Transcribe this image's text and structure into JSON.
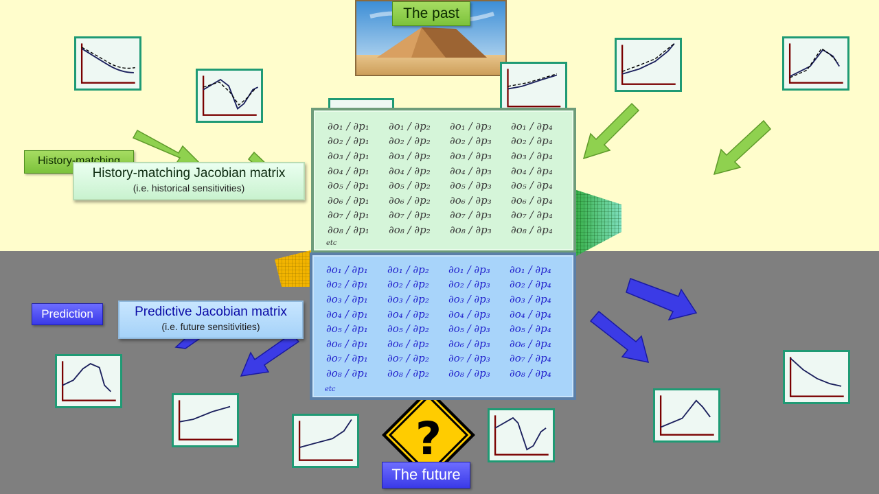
{
  "past": {
    "label": "The past"
  },
  "future": {
    "label": "The future"
  },
  "tags": {
    "history": "History-matching",
    "prediction": "Prediction"
  },
  "history_box": {
    "title": "History-matching  Jacobian matrix",
    "subtitle": "(i.e. historical sensitivities)"
  },
  "predict_box": {
    "title": "Predictive Jacobian matrix",
    "subtitle": "(i.e. future sensitivities)"
  },
  "sign": {
    "symbol": "?"
  },
  "history_matrix": {
    "rows": [
      [
        "∂o₁ / ∂p₁",
        "∂o₁ / ∂p₂",
        "∂o₁ / ∂p₃",
        "∂o₁ / ∂p₄"
      ],
      [
        "∂o₂ / ∂p₁",
        "∂o₂ / ∂p₂",
        "∂o₂ / ∂p₃",
        "∂o₂ / ∂p₄"
      ],
      [
        "∂o₃ / ∂p₁",
        "∂o₃ / ∂p₂",
        "∂o₃ / ∂p₃",
        "∂o₃ / ∂p₄"
      ],
      [
        "∂o₄ / ∂p₁",
        "∂o₄ / ∂p₂",
        "∂o₄ / ∂p₃",
        "∂o₄ / ∂p₄"
      ],
      [
        "∂o₅ / ∂p₁",
        "∂o₅ / ∂p₂",
        "∂o₅ / ∂p₃",
        "∂o₅ / ∂p₄"
      ],
      [
        "∂o₆ / ∂p₁",
        "∂o₆ / ∂p₂",
        "∂o₆ / ∂p₃",
        "∂o₆ / ∂p₄"
      ],
      [
        "∂o₇ / ∂p₁",
        "∂o₇ / ∂p₂",
        "∂o₇ / ∂p₃",
        "∂o₇ / ∂p₄"
      ],
      [
        "∂o₈ / ∂p₁",
        "∂o₈ / ∂p₂",
        "∂o₈ / ∂p₃",
        "∂o₈ / ∂p₄"
      ]
    ],
    "etc": "etc"
  },
  "predict_matrix": {
    "rows": [
      [
        "∂o₁ / ∂p₁",
        "∂o₁ / ∂p₂",
        "∂o₁ / ∂p₃",
        "∂o₁ / ∂p₄"
      ],
      [
        "∂o₂ / ∂p₁",
        "∂o₂ / ∂p₂",
        "∂o₂ / ∂p₃",
        "∂o₂ / ∂p₄"
      ],
      [
        "∂o₃ / ∂p₁",
        "∂o₃ / ∂p₂",
        "∂o₃ / ∂p₃",
        "∂o₃ / ∂p₄"
      ],
      [
        "∂o₄ / ∂p₁",
        "∂o₄ / ∂p₂",
        "∂o₄ / ∂p₃",
        "∂o₄ / ∂p₄"
      ],
      [
        "∂o₅ / ∂p₁",
        "∂o₅ / ∂p₂",
        "∂o₅ / ∂p₃",
        "∂o₅ / ∂p₄"
      ],
      [
        "∂o₆ / ∂p₁",
        "∂o₆ / ∂p₂",
        "∂o₆ / ∂p₃",
        "∂o₆ / ∂p₄"
      ],
      [
        "∂o₇ / ∂p₁",
        "∂o₇ / ∂p₂",
        "∂o₇ / ∂p₃",
        "∂o₇ / ∂p₄"
      ],
      [
        "∂o₈ / ∂p₁",
        "∂o₈ / ∂p₂",
        "∂o₈ / ∂p₃",
        "∂o₈ / ∂p₄"
      ]
    ],
    "etc": "etc"
  },
  "colors": {
    "green_arrow": "#8fd14f",
    "blue_arrow": "#3b3be6",
    "plot_border": "#1f9a74",
    "curve": "#1a1f5c",
    "axis": "#7a0000"
  }
}
